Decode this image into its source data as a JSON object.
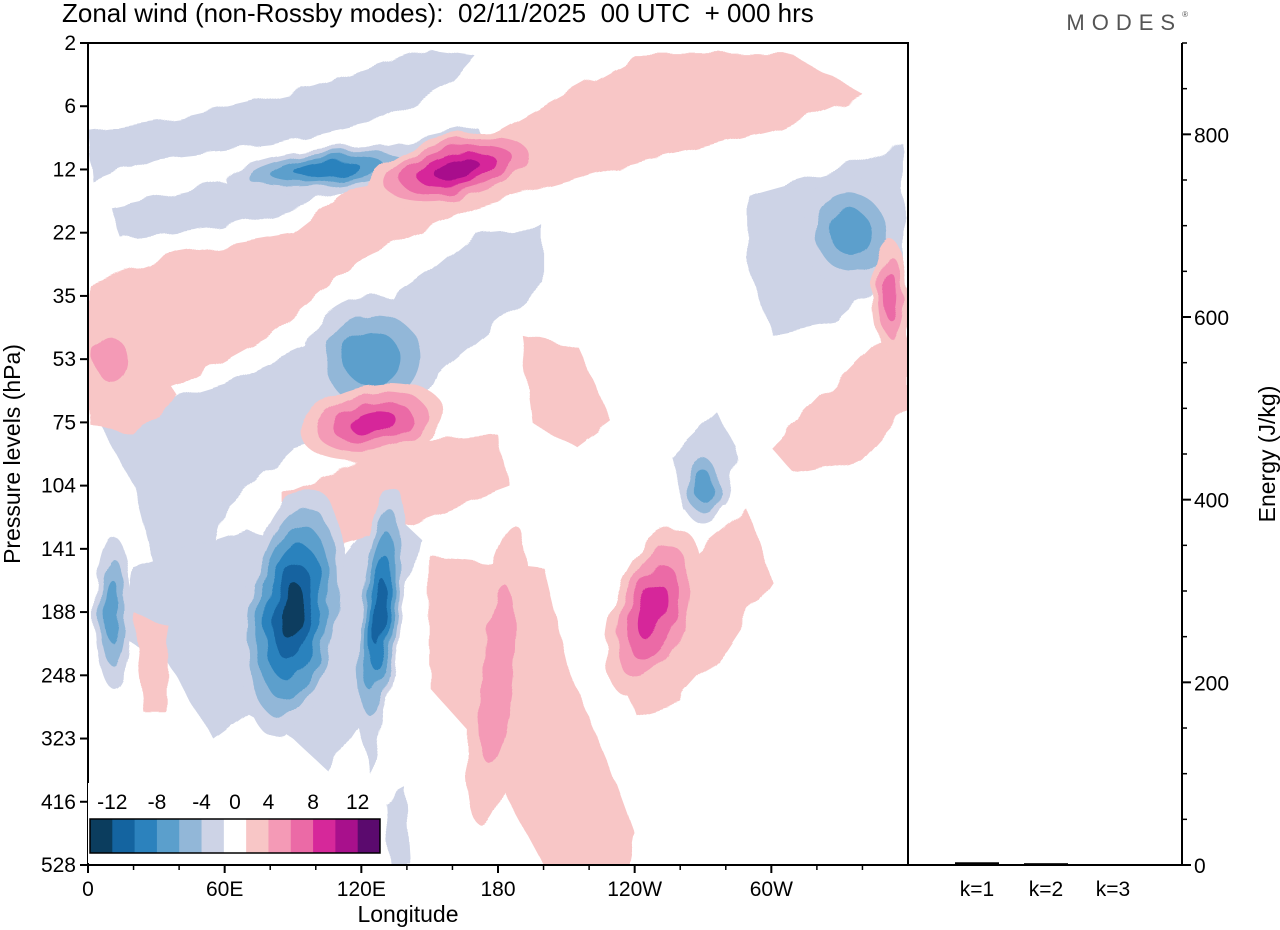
{
  "title": "Zonal wind (non-Rossby modes):  02/11/2025  00 UTC  + 000 hrs",
  "brand": "MODES",
  "chart_data": [
    {
      "type": "heatmap",
      "title": "Zonal wind (non-Rossby modes)",
      "xlabel": "Longitude",
      "ylabel": "Pressure levels (hPa)",
      "x_ticks": [
        "0",
        "60E",
        "120E",
        "180",
        "120W",
        "60W"
      ],
      "x_tick_values": [
        0,
        60,
        120,
        180,
        240,
        300
      ],
      "xlim": [
        0,
        360
      ],
      "y_ticks": [
        "2",
        "6",
        "12",
        "22",
        "35",
        "53",
        "75",
        "104",
        "141",
        "188",
        "248",
        "323",
        "416",
        "528"
      ],
      "colorbar": {
        "labels": [
          "-12",
          "-8",
          "-4",
          "0",
          "4",
          "8",
          "12"
        ],
        "levels": [
          -14,
          -12,
          -10,
          -8,
          -6,
          -4,
          -2,
          2,
          4,
          6,
          8,
          10,
          12,
          14
        ],
        "colors": [
          "#0b3d5e",
          "#1464a0",
          "#2c82bd",
          "#5b9fcc",
          "#92b7d8",
          "#cdd3e6",
          "#ffffff",
          "#f8c6c6",
          "#f49ab6",
          "#eb6aa6",
          "#d6289a",
          "#a8108c",
          "#5b0a6e"
        ]
      },
      "features": [
        {
          "kind": "negative",
          "lon": 90,
          "level": "188",
          "peak": -13
        },
        {
          "kind": "negative",
          "lon": 128,
          "level": "188",
          "peak": -10
        },
        {
          "kind": "negative",
          "lon": 11,
          "level": "188",
          "peak": -7
        },
        {
          "kind": "negative",
          "lon": 105,
          "level": "12",
          "peak": -8
        },
        {
          "kind": "negative",
          "lon": 125,
          "level": "53",
          "peak": -7
        },
        {
          "kind": "negative",
          "lon": 335,
          "level": "22",
          "peak": -6
        },
        {
          "kind": "negative",
          "lon": 270,
          "level": "104",
          "peak": -6
        },
        {
          "kind": "positive",
          "lon": 162,
          "level": "12",
          "peak": 11
        },
        {
          "kind": "positive",
          "lon": 125,
          "level": "75",
          "peak": 8
        },
        {
          "kind": "positive",
          "lon": 248,
          "level": "188",
          "peak": 8
        },
        {
          "kind": "positive",
          "lon": 10,
          "level": "53",
          "peak": 5
        },
        {
          "kind": "positive",
          "lon": 180,
          "level": "248",
          "peak": 5
        },
        {
          "kind": "positive",
          "lon": 352,
          "level": "35",
          "peak": 7
        }
      ]
    },
    {
      "type": "bar",
      "categories": [
        "k=1",
        "k=2",
        "k=3"
      ],
      "values": [
        3,
        2,
        1
      ],
      "ylabel": "Energy (J/kg)",
      "ylim": [
        0,
        900
      ],
      "y_ticks": [
        0,
        200,
        400,
        600,
        800
      ]
    }
  ]
}
